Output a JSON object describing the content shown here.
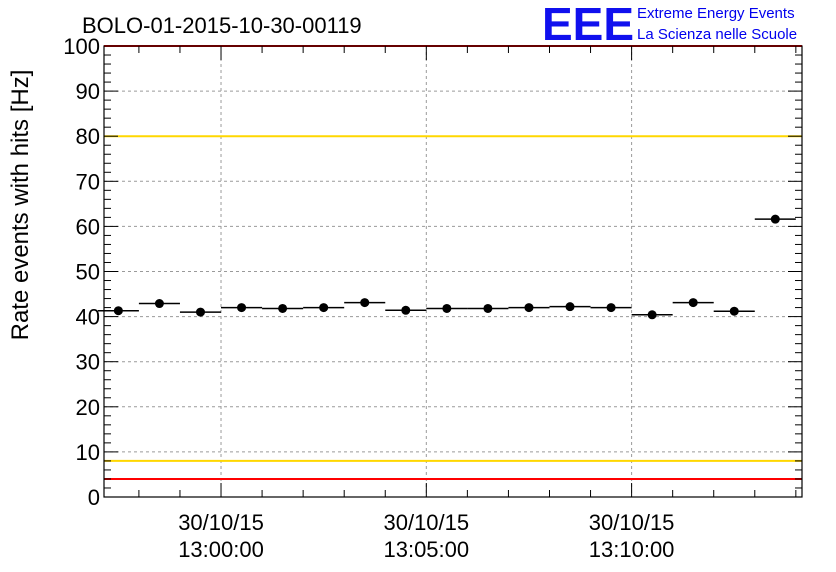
{
  "chart_data": {
    "type": "scatter",
    "title": "BOLO-01-2015-10-30-00119",
    "ylabel": "Rate events with hits [Hz]",
    "xlabel": "",
    "ylim": [
      0,
      100
    ],
    "y_ticks": [
      "0",
      "10",
      "20",
      "30",
      "40",
      "50",
      "60",
      "70",
      "80",
      "90",
      "100"
    ],
    "x_ticks": [
      {
        "date": "30/10/15",
        "time": "13:00:00"
      },
      {
        "date": "30/10/15",
        "time": "13:05:00"
      },
      {
        "date": "30/10/15",
        "time": "13:10:00"
      }
    ],
    "x_range_minutes": [
      -2.85,
      14.15
    ],
    "points": [
      {
        "t": -2.5,
        "y": 41.3
      },
      {
        "t": -1.5,
        "y": 42.9
      },
      {
        "t": -0.5,
        "y": 41.0
      },
      {
        "t": 0.5,
        "y": 42.0
      },
      {
        "t": 1.5,
        "y": 41.8
      },
      {
        "t": 2.5,
        "y": 42.0
      },
      {
        "t": 3.5,
        "y": 43.1
      },
      {
        "t": 4.5,
        "y": 41.4
      },
      {
        "t": 5.5,
        "y": 41.8
      },
      {
        "t": 6.5,
        "y": 41.8
      },
      {
        "t": 7.5,
        "y": 42.0
      },
      {
        "t": 8.5,
        "y": 42.2
      },
      {
        "t": 9.5,
        "y": 42.0
      },
      {
        "t": 10.5,
        "y": 40.4
      },
      {
        "t": 11.5,
        "y": 43.1
      },
      {
        "t": 12.5,
        "y": 41.2
      },
      {
        "t": 13.5,
        "y": 61.6
      }
    ],
    "bin_width_minutes": 1,
    "reference_lines": [
      {
        "y": 80,
        "color": "#ffd700"
      },
      {
        "y": 8,
        "color": "#ffd700"
      },
      {
        "y": 4,
        "color": "#ff0000"
      },
      {
        "y": 100,
        "color": "#ff0000"
      }
    ],
    "grid": true
  },
  "logo": {
    "mark": "EEE",
    "line1": "Extreme Energy Events",
    "line2": "La Scienza nelle Scuole",
    "color": "#0000ee"
  }
}
